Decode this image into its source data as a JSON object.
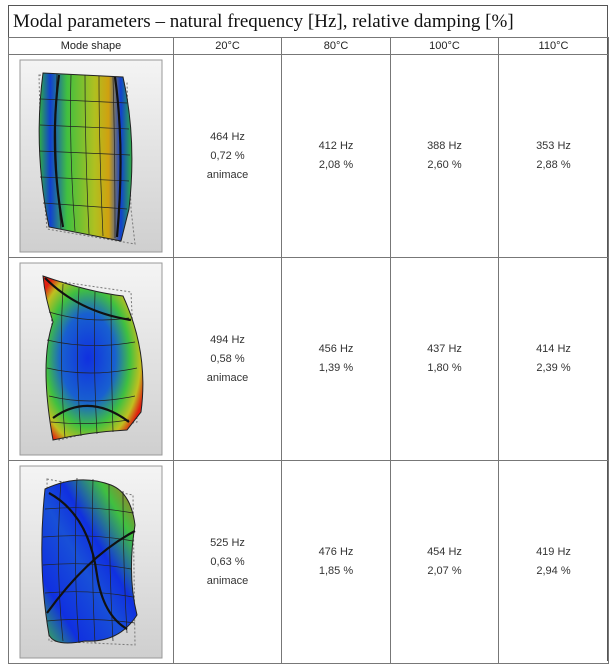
{
  "title": "Modal parameters – natural frequency [Hz], relative damping [%]",
  "columns": [
    "Mode shape",
    "20°C",
    "80°C",
    "100°C",
    "110°C"
  ],
  "rows": [
    {
      "cells": [
        {
          "freq": "464 Hz",
          "damp": "0,72 %",
          "link": "animace"
        },
        {
          "freq": "412 Hz",
          "damp": "2,08 %"
        },
        {
          "freq": "388 Hz",
          "damp": "2,60 %"
        },
        {
          "freq": "353 Hz",
          "damp": "2,88 %"
        }
      ]
    },
    {
      "cells": [
        {
          "freq": "494 Hz",
          "damp": "0,58 %",
          "link": "animace"
        },
        {
          "freq": "456 Hz",
          "damp": "1,39 %"
        },
        {
          "freq": "437 Hz",
          "damp": "1,80 %"
        },
        {
          "freq": "414 Hz",
          "damp": "2,39 %"
        }
      ]
    },
    {
      "cells": [
        {
          "freq": "525 Hz",
          "damp": "0,63 %",
          "link": "animace"
        },
        {
          "freq": "476 Hz",
          "damp": "1,85 %"
        },
        {
          "freq": "454 Hz",
          "damp": "2,07 %"
        },
        {
          "freq": "419 Hz",
          "damp": "2,94 %"
        }
      ]
    }
  ],
  "colors": {
    "low": "#1030e0",
    "mid": "#40c040",
    "high": "#e02010",
    "border": "#555555"
  }
}
